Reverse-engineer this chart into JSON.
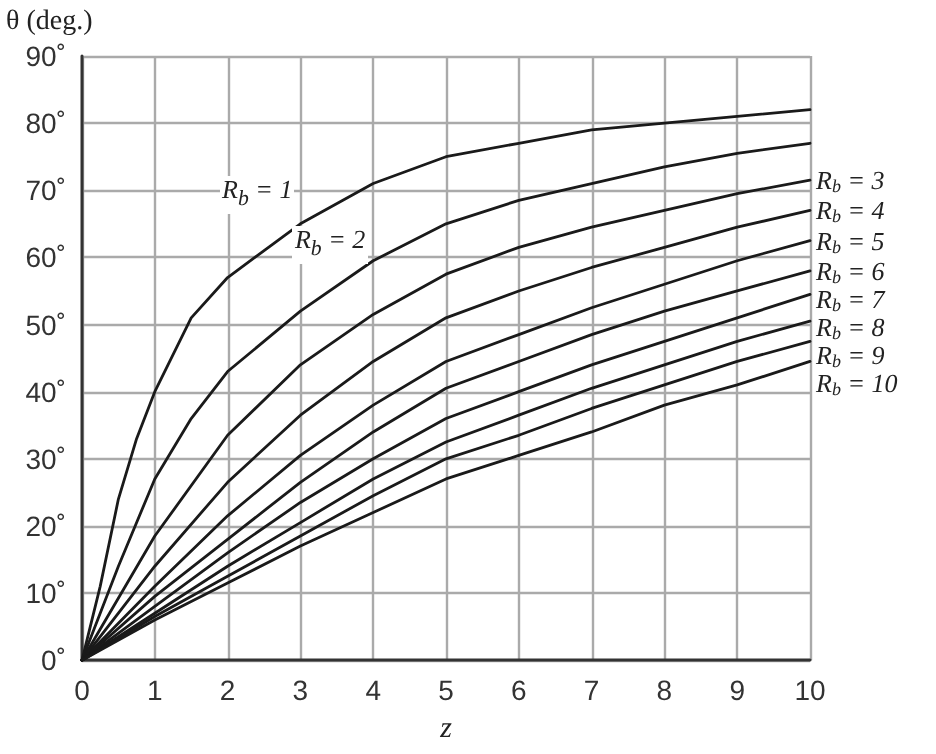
{
  "chart_data": {
    "type": "line",
    "xlabel": "z",
    "ylabel": "θ (deg.)",
    "xlim": [
      0,
      10
    ],
    "xticks": [
      0,
      1,
      2,
      3,
      4,
      5,
      6,
      7,
      8,
      9,
      10
    ],
    "ylim": [
      0,
      90
    ],
    "yticks": [
      {
        "value": 0,
        "label": "0˚"
      },
      {
        "value": 10,
        "label": "10˚"
      },
      {
        "value": 20,
        "label": "20˚"
      },
      {
        "value": 30,
        "label": "30˚"
      },
      {
        "value": 40,
        "label": "40˚"
      },
      {
        "value": 50,
        "label": "50˚"
      },
      {
        "value": 60,
        "label": "60˚"
      },
      {
        "value": 70,
        "label": "70˚"
      },
      {
        "value": 80,
        "label": "80˚"
      },
      {
        "value": 90,
        "label": "90˚"
      }
    ],
    "grid": true,
    "legend": false,
    "marker": "none",
    "line_style": "solid",
    "series": [
      {
        "color": "#1a1a1a",
        "x": [
          0,
          0.25,
          0.5,
          0.75,
          1,
          1.5,
          2,
          3,
          4,
          5,
          6,
          7,
          8,
          9,
          10
        ],
        "values": [
          0,
          11,
          24,
          33,
          40,
          51,
          57,
          65,
          71,
          75,
          77,
          79,
          80,
          81,
          82
        ]
      },
      {
        "color": "#1a1a1a",
        "x": [
          0,
          0.5,
          1,
          1.5,
          2,
          3,
          4,
          5,
          6,
          7,
          8,
          9,
          10
        ],
        "values": [
          0,
          14,
          27,
          36,
          43,
          52,
          59.5,
          65,
          68.5,
          71,
          73.5,
          75.5,
          77
        ]
      },
      {
        "name": "R$_{b}$ = 3",
        "color": "#1a1a1a",
        "x": [
          0,
          1,
          2,
          3,
          4,
          5,
          6,
          7,
          8,
          9,
          10
        ],
        "values": [
          0,
          18.5,
          33.5,
          44,
          51.5,
          57.5,
          61.5,
          64.5,
          67,
          69.5,
          71.5
        ]
      },
      {
        "name": "R$_{b}$ = 4",
        "color": "#1a1a1a",
        "x": [
          0,
          1,
          2,
          3,
          4,
          5,
          6,
          7,
          8,
          9,
          10
        ],
        "values": [
          0,
          14,
          26.5,
          36.5,
          44.5,
          51,
          55,
          58.5,
          61.5,
          64.5,
          67
        ]
      },
      {
        "name": "R$_{b}$ = 5",
        "color": "#1a1a1a",
        "x": [
          0,
          1,
          2,
          3,
          4,
          5,
          6,
          7,
          8,
          9,
          10
        ],
        "values": [
          0,
          11,
          21.5,
          30.5,
          38,
          44.5,
          48.5,
          52.5,
          56,
          59.5,
          62.5
        ]
      },
      {
        "name": "R$_{b}$ = 6",
        "color": "#1a1a1a",
        "x": [
          0,
          1,
          2,
          3,
          4,
          5,
          6,
          7,
          8,
          9,
          10
        ],
        "values": [
          0,
          9.5,
          18,
          26.5,
          34,
          40.5,
          44.5,
          48.5,
          52,
          55,
          58
        ]
      },
      {
        "name": "R$_{b}$ = 7",
        "color": "#1a1a1a",
        "x": [
          0,
          1,
          2,
          3,
          4,
          5,
          6,
          7,
          8,
          9,
          10
        ],
        "values": [
          0,
          8,
          16,
          23.5,
          30,
          36,
          40,
          44,
          47.5,
          51,
          54.5
        ]
      },
      {
        "name": "R$_{b}$ = 8",
        "color": "#1a1a1a",
        "x": [
          0,
          1,
          2,
          3,
          4,
          5,
          6,
          7,
          8,
          9,
          10
        ],
        "values": [
          0,
          7,
          14,
          20.5,
          27,
          32.5,
          36.5,
          40.5,
          44,
          47.5,
          50.5
        ]
      },
      {
        "name": "R$_{b}$ = 9",
        "color": "#1a1a1a",
        "x": [
          0,
          1,
          2,
          3,
          4,
          5,
          6,
          7,
          8,
          9,
          10
        ],
        "values": [
          0,
          6.5,
          12.5,
          18.5,
          24.5,
          30,
          33.5,
          37.5,
          41,
          44.5,
          47.5
        ]
      },
      {
        "name": "R$_{b}$ = 10",
        "color": "#1a1a1a",
        "x": [
          0,
          1,
          2,
          3,
          4,
          5,
          6,
          7,
          8,
          9,
          10
        ],
        "values": [
          0,
          6,
          11.5,
          17,
          22,
          27,
          30.5,
          34,
          38,
          41,
          44.5
        ]
      }
    ],
    "annotations": [
      {
        "text": "R$_{b}$ = 1",
        "x": 3,
        "y": 67
      },
      {
        "text": "R$_{b}$ = 2",
        "x": 4,
        "y": 59.5
      }
    ]
  }
}
